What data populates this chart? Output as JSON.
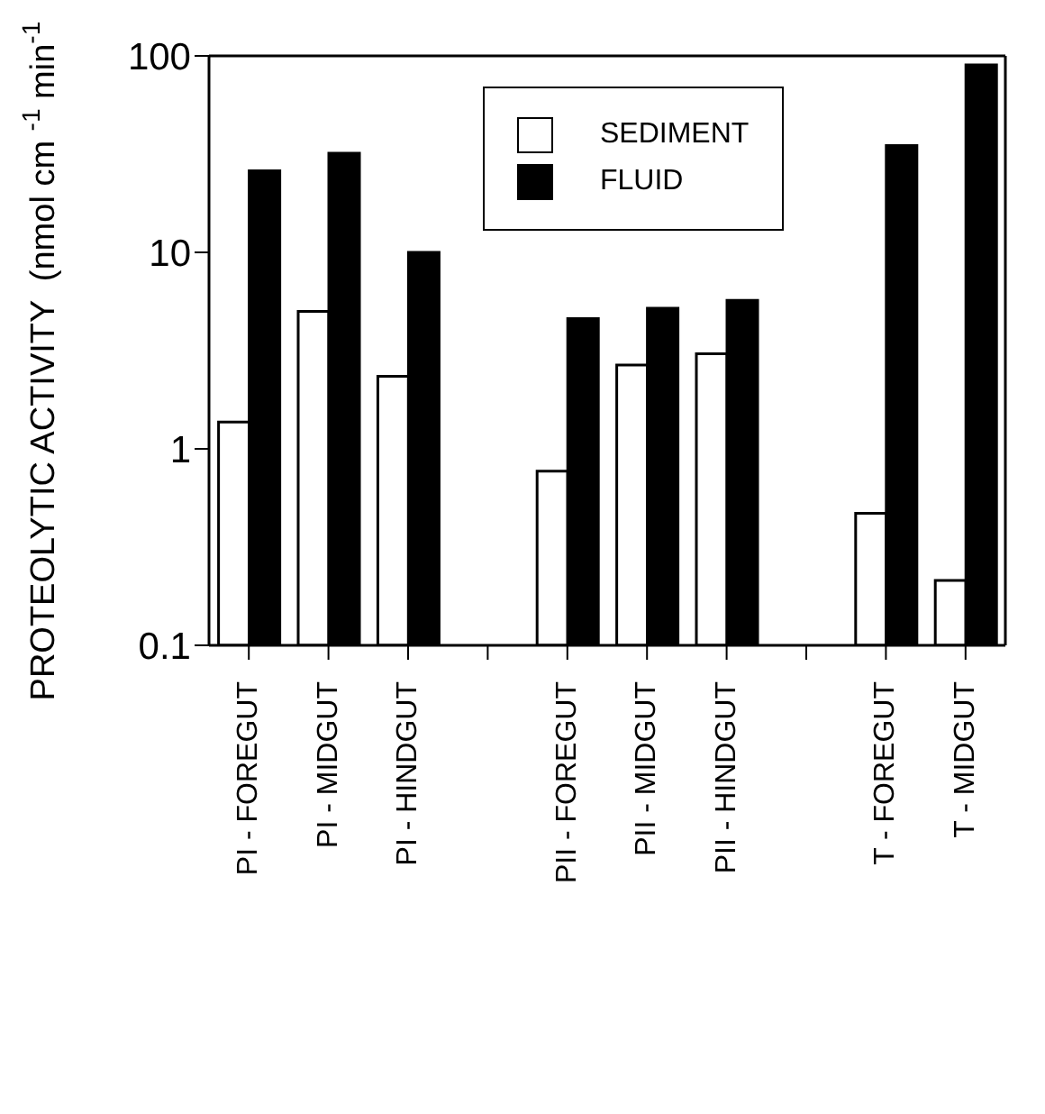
{
  "chart_data": {
    "type": "bar",
    "ylabel": "PROTEOLYTIC ACTIVITY  (nmol cm $^{-1}$ min$^{-1}$ )",
    "categories": [
      "PI - FOREGUT",
      "PI - MIDGUT",
      "PI - HINDGUT",
      null,
      "PII - FOREGUT",
      "PII - MIDGUT",
      "PII - HINDGUT",
      null,
      "T - FOREGUT",
      "T - MIDGUT"
    ],
    "series": [
      {
        "name": "SEDIMENT",
        "color": "#ffffff",
        "values": [
          1.37,
          5.0,
          2.34,
          null,
          0.77,
          2.67,
          3.05,
          null,
          0.47,
          0.214
        ]
      },
      {
        "name": "FLUID",
        "color": "#000000",
        "values": [
          26,
          32,
          10,
          null,
          4.6,
          5.2,
          5.7,
          null,
          35,
          90
        ]
      }
    ],
    "log": true,
    "ylim": [
      0.1,
      100
    ],
    "yticks": [
      0.1,
      1,
      10,
      100
    ],
    "legend": "top"
  }
}
